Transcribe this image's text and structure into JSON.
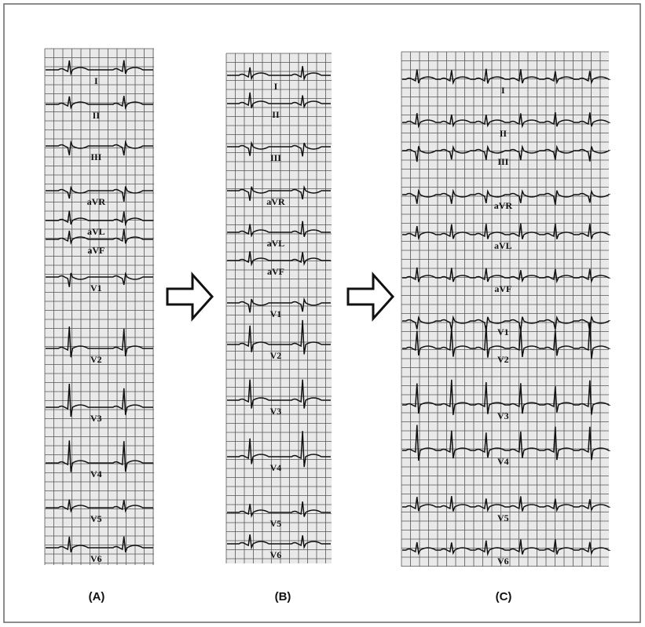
{
  "panels": [
    {
      "label": "(A)",
      "leads": [
        "I",
        "II",
        "III",
        "aVR",
        "aVL",
        "aVF",
        "V1",
        "V2",
        "V3",
        "V4",
        "V5",
        "V6"
      ]
    },
    {
      "label": "(B)",
      "leads": [
        "I",
        "II",
        "III",
        "aVR",
        "aVL",
        "aVF",
        "V1",
        "V2",
        "V3",
        "V4",
        "V5",
        "V6"
      ]
    },
    {
      "label": "(C)",
      "leads": [
        "I",
        "II",
        "III",
        "aVR",
        "aVL",
        "aVF",
        "V1",
        "V2",
        "V3",
        "V4",
        "V5",
        "V6"
      ]
    }
  ]
}
